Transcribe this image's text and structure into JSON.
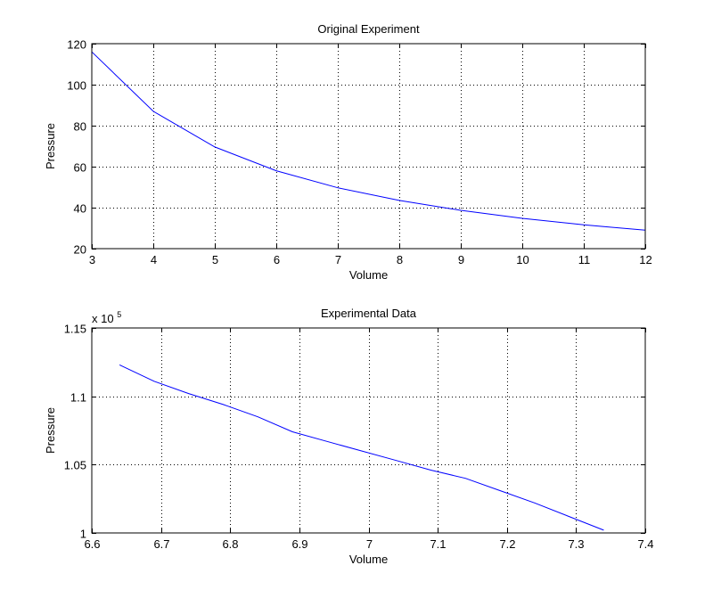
{
  "chart_data": [
    {
      "type": "line",
      "title": "Original Experiment",
      "xlabel": "Volume",
      "ylabel": "Pressure",
      "xlim": [
        3,
        12
      ],
      "ylim": [
        20,
        120
      ],
      "xticks": [
        3,
        4,
        5,
        6,
        7,
        8,
        9,
        10,
        11,
        12
      ],
      "yticks": [
        20,
        40,
        60,
        80,
        100,
        120
      ],
      "xtick_labels": [
        "3",
        "4",
        "5",
        "6",
        "7",
        "8",
        "9",
        "10",
        "11",
        "12"
      ],
      "ytick_labels": [
        "20",
        "40",
        "60",
        "80",
        "100",
        "120"
      ],
      "grid": true,
      "series": [
        {
          "color": "#0000ff",
          "x": [
            3,
            4,
            5,
            6,
            7,
            8,
            9,
            10,
            11,
            12
          ],
          "y": [
            116,
            87,
            69.6,
            58,
            49.7,
            43.5,
            38.7,
            34.8,
            31.6,
            29
          ]
        }
      ]
    },
    {
      "type": "line",
      "title": "Experimental Data",
      "xlabel": "Volume",
      "ylabel": "Pressure",
      "y_multiplier": "x 10",
      "y_multiplier_exponent": "5",
      "xlim": [
        6.6,
        7.4
      ],
      "ylim": [
        1.0,
        1.15
      ],
      "xticks": [
        6.6,
        6.7,
        6.8,
        6.9,
        7.0,
        7.1,
        7.2,
        7.3,
        7.4
      ],
      "yticks": [
        1.0,
        1.05,
        1.1,
        1.15
      ],
      "xtick_labels": [
        "6.6",
        "6.7",
        "6.8",
        "6.9",
        "7",
        "7.1",
        "7.2",
        "7.3",
        "7.4"
      ],
      "ytick_labels": [
        "1",
        "1.05",
        "1.1",
        "1.15"
      ],
      "grid": true,
      "series": [
        {
          "color": "#0000ff",
          "x": [
            6.64,
            6.69,
            6.74,
            6.79,
            6.84,
            6.89,
            6.94,
            6.99,
            7.04,
            7.09,
            7.14,
            7.19,
            7.24,
            7.29,
            7.34
          ],
          "y": [
            1.123,
            1.111,
            1.102,
            1.094,
            1.085,
            1.074,
            1.067,
            1.06,
            1.053,
            1.046,
            1.04,
            1.031,
            1.022,
            1.012,
            1.002
          ]
        }
      ]
    }
  ]
}
